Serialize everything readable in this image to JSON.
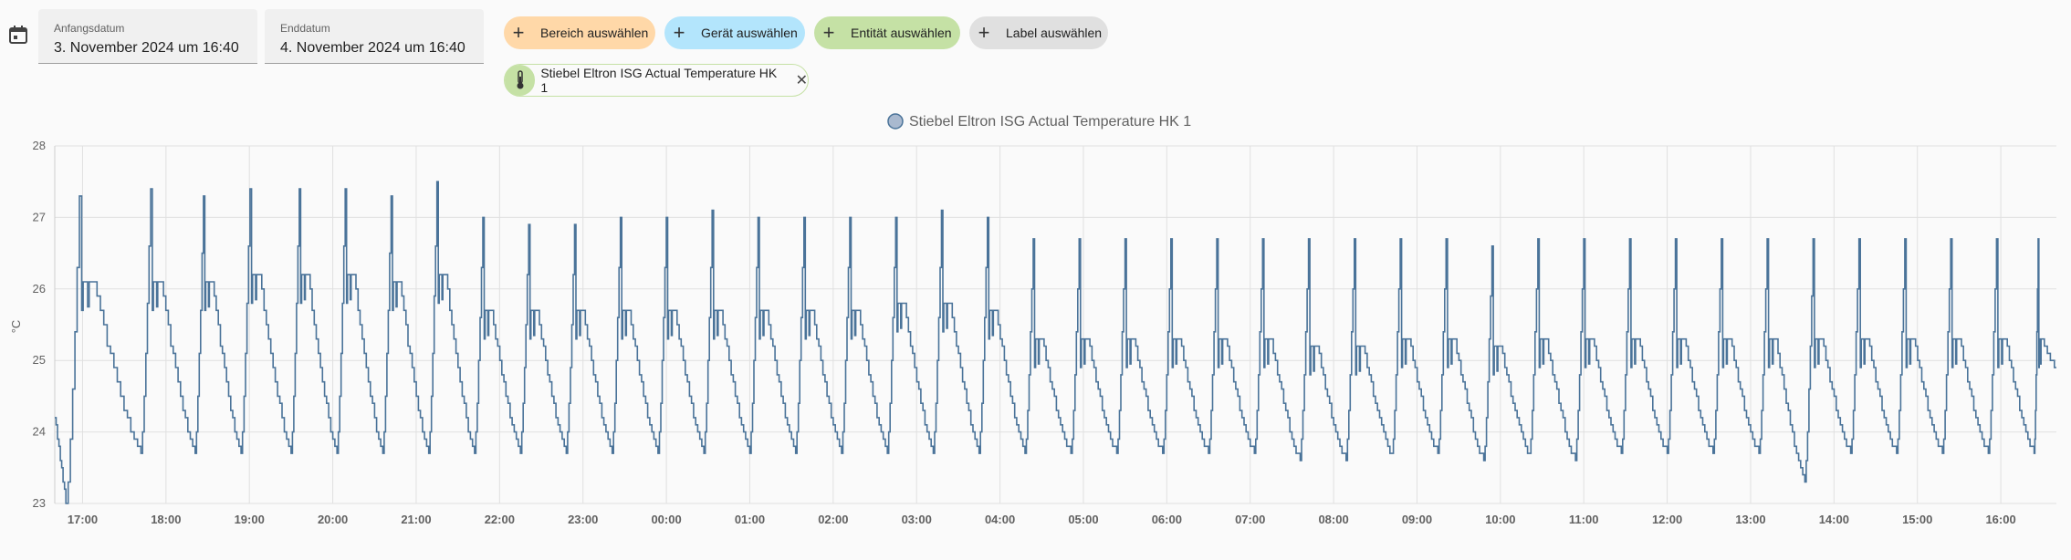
{
  "header": {
    "start_label": "Anfangsdatum",
    "start_value": "3. November 2024 um 16:40",
    "end_label": "Enddatum",
    "end_value": "4. November 2024 um 16:40"
  },
  "filters": [
    {
      "label": "Bereich auswählen",
      "color": "#ffd8a8"
    },
    {
      "label": "Gerät auswählen",
      "color": "#b3e5fc"
    },
    {
      "label": "Entität auswählen",
      "color": "#c5e1a5"
    },
    {
      "label": "Label auswählen",
      "color": "#e0e0e0"
    }
  ],
  "selected_entity": {
    "label": "Stiebel Eltron ISG Actual Temperature HK 1",
    "icon": "thermometer-icon"
  },
  "chart_data": {
    "type": "line",
    "legend": "Stiebel Eltron ISG Actual Temperature HK 1",
    "legend_placement": "top-center",
    "line_color": "#4a7399",
    "ylabel": "°C",
    "ylim": [
      23,
      28
    ],
    "yticks": [
      23,
      24,
      25,
      26,
      27,
      28
    ],
    "x_range": [
      "16:40",
      "16:40 +1d"
    ],
    "xticks": [
      "17:00",
      "18:00",
      "19:00",
      "20:00",
      "21:00",
      "22:00",
      "23:00",
      "00:00",
      "01:00",
      "02:00",
      "03:00",
      "04:00",
      "05:00",
      "06:00",
      "07:00",
      "08:00",
      "09:00",
      "10:00",
      "11:00",
      "12:00",
      "13:00",
      "14:00",
      "15:00",
      "16:00"
    ],
    "grid": true,
    "cycle_start_hours": [
      16.8,
      17.7,
      18.35,
      18.9,
      19.5,
      20.05,
      20.6,
      21.15,
      21.7,
      22.25,
      22.8,
      23.35,
      23.9,
      24.45,
      25.0,
      25.55,
      26.1,
      26.65,
      27.2,
      27.75,
      28.3,
      28.85,
      29.4,
      29.95,
      30.5,
      31.05,
      31.6,
      32.15,
      32.7,
      33.25,
      33.8,
      34.35,
      34.9,
      35.45,
      36.0,
      36.55,
      37.1,
      37.65,
      38.2,
      38.75,
      39.3,
      39.85,
      40.4
    ],
    "cycle_peaks": [
      27.3,
      27.4,
      27.3,
      27.4,
      27.4,
      27.4,
      27.3,
      27.5,
      27.0,
      26.9,
      26.9,
      27.0,
      27.0,
      27.1,
      27.0,
      27.0,
      27.0,
      27.0,
      27.1,
      27.0,
      26.7,
      26.7,
      26.7,
      26.7,
      26.7,
      26.7,
      26.7,
      26.7,
      26.7,
      26.7,
      26.6,
      26.7,
      26.7,
      26.7,
      26.7,
      26.7,
      26.7,
      26.7,
      26.7,
      26.7,
      26.7,
      26.7,
      26.7
    ],
    "cycle_plateaus": [
      26.1,
      26.1,
      26.1,
      26.2,
      26.2,
      26.2,
      26.1,
      26.2,
      25.7,
      25.7,
      25.7,
      25.7,
      25.7,
      25.7,
      25.7,
      25.7,
      25.7,
      25.8,
      25.8,
      25.7,
      25.3,
      25.3,
      25.3,
      25.3,
      25.3,
      25.3,
      25.2,
      25.2,
      25.3,
      25.3,
      25.2,
      25.3,
      25.3,
      25.3,
      25.3,
      25.3,
      25.3,
      25.3,
      25.3,
      25.3,
      25.3,
      25.3,
      25.3
    ],
    "cycle_minimums": [
      23.0,
      23.7,
      23.7,
      23.7,
      23.7,
      23.7,
      23.7,
      23.7,
      23.7,
      23.7,
      23.7,
      23.7,
      23.7,
      23.7,
      23.7,
      23.7,
      23.7,
      23.7,
      23.7,
      23.7,
      23.7,
      23.7,
      23.7,
      23.7,
      23.7,
      23.7,
      23.6,
      23.6,
      23.7,
      23.7,
      23.6,
      23.7,
      23.6,
      23.7,
      23.7,
      23.7,
      23.7,
      23.3,
      23.7,
      23.7,
      23.7,
      23.7,
      23.7
    ]
  }
}
